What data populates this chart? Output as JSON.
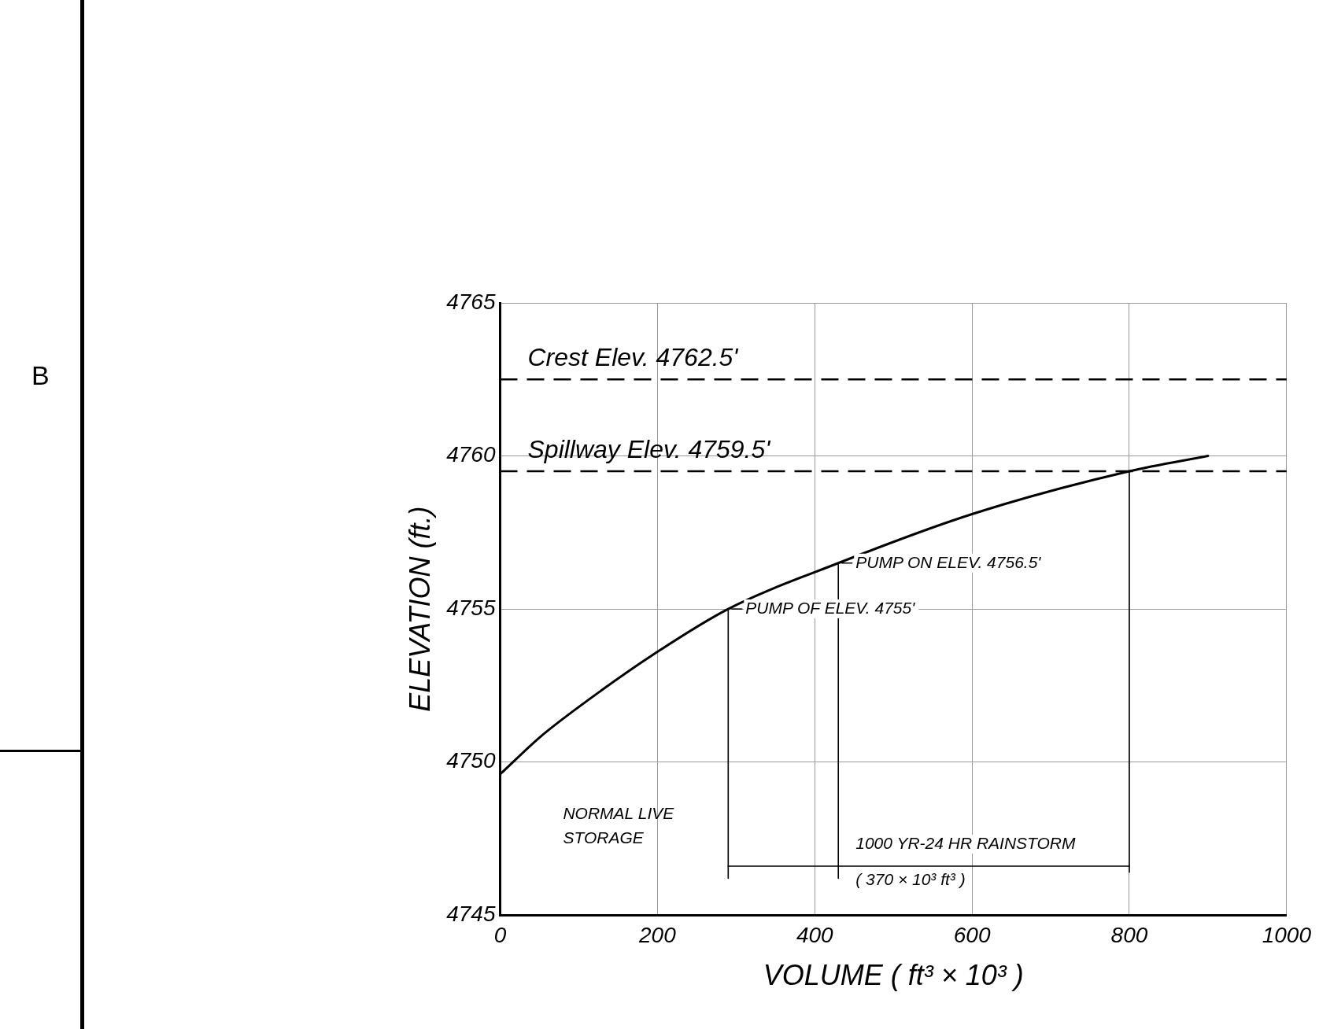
{
  "chart_data": {
    "type": "line",
    "xlabel": "VOLUME ( ft³ × 10³ )",
    "ylabel": "ELEVATION (ft.)",
    "xlim": [
      0,
      1000
    ],
    "xticks": [
      0,
      200,
      400,
      600,
      800,
      1000
    ],
    "ylim": [
      4745,
      4765
    ],
    "yticks": [
      4745,
      4750,
      4755,
      4760,
      4765
    ],
    "grid": true,
    "series": [
      {
        "color": "#000000",
        "x": [
          0,
          50,
          100,
          200,
          290,
          430,
          600,
          800,
          900
        ],
        "values": [
          4749.6,
          4750.8,
          4751.8,
          4753.6,
          4755,
          4756.5,
          4758.1,
          4759.5,
          4760
        ]
      },
      {
        "color": "#000000",
        "x": [
          290,
          290
        ],
        "values": [
          4755,
          4746.2
        ]
      },
      {
        "color": "#000000",
        "x": [
          430,
          430
        ],
        "values": [
          4756.5,
          4746.2
        ]
      },
      {
        "color": "#000000",
        "x": [
          800,
          800
        ],
        "values": [
          4759.5,
          4746.4
        ]
      },
      {
        "color": "#000000",
        "x": [
          290,
          430
        ],
        "values": [
          4746.6,
          4746.6
        ]
      },
      {
        "color": "#000000",
        "x": [
          430,
          800
        ],
        "values": [
          4746.6,
          4746.6
        ]
      }
    ],
    "ref_lines": [
      {
        "axis": "y",
        "value": 4762.5,
        "label": "Crest Elev. 4762.5'",
        "line_style": "dashed",
        "color": "#000000"
      },
      {
        "axis": "y",
        "value": 4759.5,
        "label": "Spillway Elev. 4759.5'",
        "line_style": "dashed",
        "color": "#000000"
      }
    ],
    "annotations": [
      "PUMP ON ELEV. 4756.5'",
      "PUMP OF ELEV. 4755'",
      "1000 YR-24 HR RAINSTORM",
      "( 370 × 10³ ft³ )",
      "NORMAL LIVE STORAGE",
      "B"
    ],
    "legend": false
  }
}
